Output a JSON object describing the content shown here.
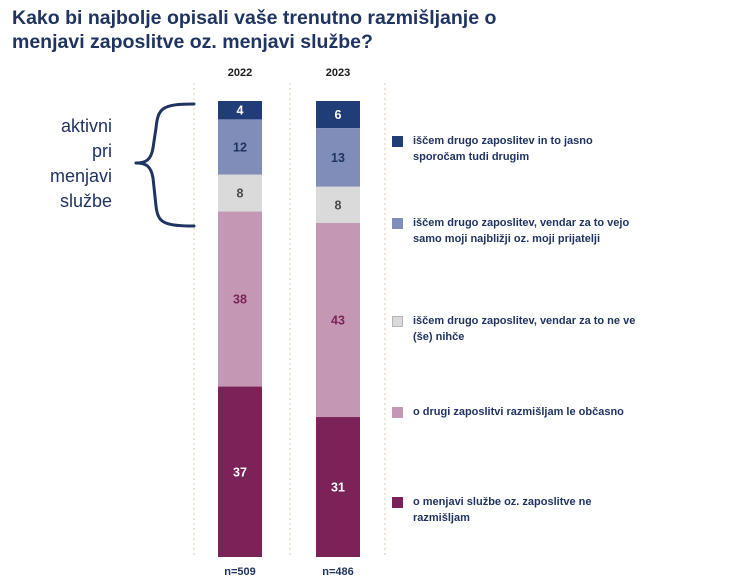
{
  "title": "Kako bi najbolje opisali vaše trenutno razmišljanje o menjavi zaposlitve oz. menjavi službe?",
  "bracket_label": [
    "aktivni",
    "pri",
    "menjavi",
    "službe"
  ],
  "chart_data": {
    "type": "bar",
    "stacked": true,
    "percent": true,
    "title": "Kako bi najbolje opisali vaše trenutno razmišljanje o menjavi zaposlitve oz. menjavi službe?",
    "categories": [
      "2022",
      "2023"
    ],
    "sample_sizes": [
      "n=509",
      "n=486"
    ],
    "series": [
      {
        "name": "iščem drugo zaposlitev in to jasno sporočam tudi drugim",
        "color": "#203d78",
        "label_color": "#ffffff",
        "values": [
          4,
          6
        ]
      },
      {
        "name": "iščem drugo zaposlitev, vendar za to vejo samo moji najbližji oz. moji prijatelji",
        "color": "#7f8db8",
        "label_color": "#1f3461",
        "values": [
          12,
          13
        ]
      },
      {
        "name": "iščem drugo zaposlitev, vendar za to ne ve (še) nihče",
        "color": "#dadada",
        "label_color": "#4a4a4a",
        "values": [
          8,
          8
        ]
      },
      {
        "name": "o drugi zaposlitvi razmišljam le občasno",
        "color": "#c497b4",
        "label_color": "#7b2358",
        "values": [
          38,
          43
        ]
      },
      {
        "name": "o menjavi službe oz. zaposlitve ne razmišljam",
        "color": "#7b2358",
        "label_color": "#ffffff",
        "values": [
          37,
          31
        ]
      }
    ],
    "legend_position": "right",
    "grid": false
  }
}
